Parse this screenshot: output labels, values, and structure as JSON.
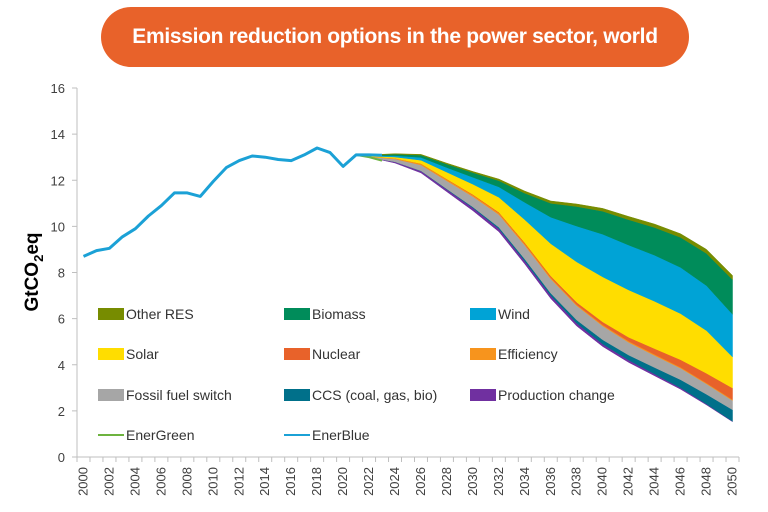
{
  "chart_data": {
    "type": "area",
    "title": "Emission reduction options in the power sector, world",
    "title_color": "#E8622A",
    "ylabel": "GtCO₂eq",
    "ylabel_parts": {
      "main": "GtCO",
      "sub": "2",
      "tail": "eq"
    },
    "xlabel": "",
    "ylim": [
      0,
      16
    ],
    "yticks": [
      0,
      2,
      4,
      6,
      8,
      10,
      12,
      14,
      16
    ],
    "x_categories_range": [
      2000,
      2050
    ],
    "xtick_labels": [
      "2000",
      "2002",
      "2004",
      "2006",
      "2008",
      "2010",
      "2012",
      "2014",
      "2016",
      "2018",
      "2020",
      "2022",
      "2024",
      "2026",
      "2028",
      "2030",
      "2032",
      "2034",
      "2036",
      "2038",
      "2040",
      "2042",
      "2044",
      "2046",
      "2048",
      "2050"
    ],
    "grid": false,
    "legend_placement": "inside-lower-left",
    "lines": {
      "EnerBlue": {
        "color": "#1BA1D6",
        "years": [
          2000,
          2001,
          2002,
          2003,
          2004,
          2005,
          2006,
          2007,
          2008,
          2009,
          2010,
          2011,
          2012,
          2013,
          2014,
          2015,
          2016,
          2017,
          2018,
          2019,
          2020,
          2021,
          2022,
          2023,
          2024,
          2026,
          2028,
          2030,
          2032,
          2034,
          2036,
          2038,
          2040,
          2042,
          2044,
          2046,
          2048,
          2050
        ],
        "values": [
          8.7,
          8.95,
          9.05,
          9.55,
          9.9,
          10.45,
          10.9,
          11.45,
          11.45,
          11.3,
          11.95,
          12.55,
          12.85,
          13.05,
          13.0,
          12.9,
          12.85,
          13.1,
          13.4,
          13.2,
          12.6,
          13.1,
          13.1,
          13.08,
          13.05,
          12.95,
          12.75,
          12.5,
          12.2,
          11.8,
          11.35,
          10.9,
          10.45,
          10.0,
          9.45,
          8.9,
          8.2,
          7.45
        ]
      },
      "EnerGreen": {
        "color": "#6DB33F",
        "years": [
          2021,
          2022,
          2023,
          2024,
          2026,
          2028,
          2030,
          2032,
          2034,
          2036,
          2038,
          2040,
          2042,
          2044,
          2046,
          2048,
          2050
        ],
        "values": [
          13.1,
          13.0,
          12.85,
          12.8,
          12.4,
          11.6,
          10.8,
          9.9,
          8.5,
          7.0,
          5.8,
          4.9,
          4.2,
          3.6,
          3.0,
          2.3,
          1.55
        ]
      }
    },
    "stack_years": [
      2022,
      2024,
      2026,
      2028,
      2030,
      2032,
      2034,
      2036,
      2038,
      2040,
      2042,
      2044,
      2046,
      2048,
      2050
    ],
    "series": [
      {
        "name": "Production change",
        "color": "#7030A0",
        "values": [
          0.0,
          0.05,
          0.08,
          0.1,
          0.12,
          0.13,
          0.13,
          0.13,
          0.12,
          0.11,
          0.1,
          0.08,
          0.06,
          0.04,
          0.02
        ]
      },
      {
        "name": "CCS (coal, gas, bio)",
        "color": "#00708A",
        "values": [
          0.0,
          0.0,
          0.01,
          0.02,
          0.04,
          0.06,
          0.08,
          0.1,
          0.14,
          0.18,
          0.22,
          0.28,
          0.35,
          0.42,
          0.5
        ]
      },
      {
        "name": "Fossil fuel switch",
        "color": "#A6A6A6",
        "values": [
          0.02,
          0.12,
          0.25,
          0.35,
          0.45,
          0.55,
          0.6,
          0.62,
          0.62,
          0.6,
          0.55,
          0.52,
          0.5,
          0.45,
          0.4
        ]
      },
      {
        "name": "Efficiency",
        "color": "#F7941D",
        "values": [
          0.01,
          0.03,
          0.05,
          0.06,
          0.06,
          0.06,
          0.06,
          0.06,
          0.05,
          0.05,
          0.05,
          0.05,
          0.04,
          0.04,
          0.04
        ]
      },
      {
        "name": "Nuclear",
        "color": "#E8622A",
        "values": [
          0.0,
          0.0,
          0.01,
          0.02,
          0.03,
          0.04,
          0.05,
          0.07,
          0.1,
          0.13,
          0.17,
          0.25,
          0.33,
          0.42,
          0.5
        ]
      },
      {
        "name": "Solar",
        "color": "#FFDD00",
        "values": [
          0.02,
          0.06,
          0.15,
          0.3,
          0.45,
          0.65,
          1.0,
          1.4,
          1.75,
          1.95,
          2.05,
          2.05,
          2.0,
          1.85,
          1.35
        ]
      },
      {
        "name": "Wind",
        "color": "#00A3D6",
        "values": [
          0.02,
          0.06,
          0.12,
          0.2,
          0.3,
          0.45,
          0.75,
          1.15,
          1.55,
          1.85,
          1.95,
          2.0,
          2.0,
          1.95,
          1.85
        ]
      },
      {
        "name": "Biomass",
        "color": "#008C5A",
        "values": [
          0.02,
          0.06,
          0.1,
          0.15,
          0.2,
          0.27,
          0.4,
          0.6,
          0.85,
          1.0,
          1.1,
          1.2,
          1.3,
          1.4,
          1.5
        ]
      },
      {
        "name": "Other RES",
        "color": "#778C00",
        "values": [
          0.01,
          0.02,
          0.03,
          0.04,
          0.05,
          0.07,
          0.09,
          0.1,
          0.11,
          0.12,
          0.14,
          0.15,
          0.16,
          0.17,
          0.18
        ]
      }
    ],
    "legend": [
      {
        "label": "Other RES",
        "color": "#778C00",
        "kind": "box"
      },
      {
        "label": "Biomass",
        "color": "#008C5A",
        "kind": "box"
      },
      {
        "label": "Wind",
        "color": "#00A3D6",
        "kind": "box"
      },
      {
        "label": "Solar",
        "color": "#FFDD00",
        "kind": "box"
      },
      {
        "label": "Nuclear",
        "color": "#E8622A",
        "kind": "box"
      },
      {
        "label": "Efficiency",
        "color": "#F7941D",
        "kind": "box"
      },
      {
        "label": "Fossil fuel switch",
        "color": "#A6A6A6",
        "kind": "box"
      },
      {
        "label": "CCS (coal, gas, bio)",
        "color": "#00708A",
        "kind": "box"
      },
      {
        "label": "Production change",
        "color": "#7030A0",
        "kind": "box"
      },
      {
        "label": "EnerGreen",
        "color": "#6DB33F",
        "kind": "line"
      },
      {
        "label": "EnerBlue",
        "color": "#1BA1D6",
        "kind": "line"
      }
    ]
  }
}
